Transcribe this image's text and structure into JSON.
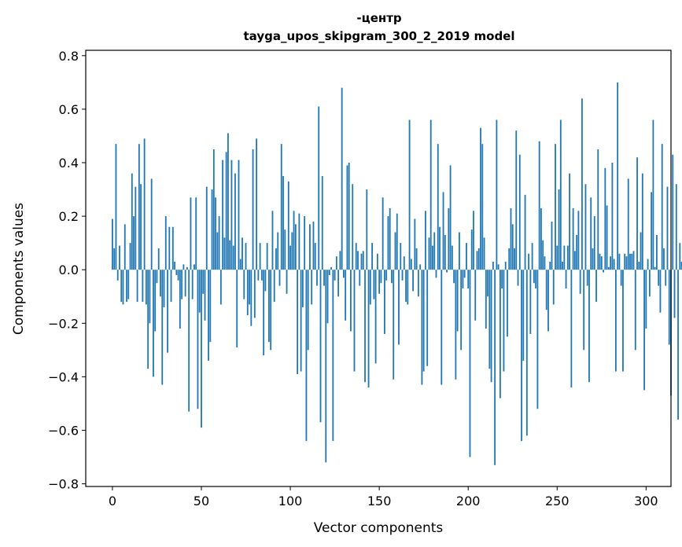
{
  "chart_data": {
    "type": "bar",
    "title_line1": "-центр",
    "title_line2": "tayga_upos_skipgram_300_2_2019 model",
    "xlabel": "Vector components",
    "ylabel": "Components values",
    "xlim": [
      -15,
      314
    ],
    "ylim": [
      -0.81,
      0.82
    ],
    "xticks": [
      0,
      50,
      100,
      150,
      200,
      250,
      300
    ],
    "xtick_labels": [
      "0",
      "50",
      "100",
      "150",
      "200",
      "250",
      "300"
    ],
    "yticks": [
      -0.8,
      -0.6,
      -0.4,
      -0.2,
      0.0,
      0.2,
      0.4,
      0.6,
      0.8
    ],
    "ytick_labels": [
      "−0.8",
      "−0.6",
      "−0.4",
      "−0.2",
      "0.0",
      "0.2",
      "0.4",
      "0.6",
      "0.8"
    ],
    "bar_color": "#1f77b4",
    "series": [
      {
        "name": "vector",
        "values": [
          0.19,
          0.08,
          0.47,
          -0.04,
          0.09,
          -0.12,
          -0.13,
          0.17,
          -0.12,
          -0.11,
          0.1,
          0.36,
          0.2,
          0.31,
          -0.12,
          0.47,
          0.32,
          -0.12,
          0.49,
          -0.13,
          -0.37,
          -0.2,
          0.34,
          -0.4,
          -0.23,
          -0.05,
          0.08,
          -0.1,
          -0.43,
          -0.14,
          0.2,
          -0.31,
          0.16,
          -0.12,
          0.16,
          0.03,
          -0.02,
          -0.04,
          -0.22,
          -0.11,
          0.02,
          -0.1,
          0.01,
          -0.53,
          0.27,
          -0.11,
          0.02,
          0.27,
          -0.52,
          -0.16,
          -0.59,
          -0.09,
          -0.19,
          0.31,
          -0.34,
          -0.27,
          0.3,
          0.45,
          0.27,
          0.14,
          0.2,
          -0.13,
          0.41,
          0.12,
          0.44,
          0.51,
          0.11,
          0.41,
          0.09,
          0.36,
          -0.29,
          0.41,
          0.04,
          0.12,
          -0.11,
          0.1,
          -0.17,
          -0.13,
          -0.21,
          0.45,
          -0.18,
          0.49,
          -0.04,
          0.1,
          -0.04,
          -0.32,
          -0.08,
          0.1,
          -0.27,
          -0.3,
          0.22,
          -0.12,
          0.08,
          0.14,
          -0.06,
          0.47,
          0.35,
          0.15,
          -0.09,
          0.33,
          0.09,
          0.14,
          0.22,
          0.17,
          -0.39,
          0.21,
          -0.38,
          -0.14,
          0.2,
          -0.64,
          -0.3,
          0.17,
          -0.13,
          0.18,
          0.1,
          -0.06,
          0.61,
          -0.57,
          0.35,
          -0.06,
          -0.72,
          -0.2,
          -0.02,
          0.01,
          -0.64,
          -0.04,
          0.05,
          -0.1,
          0.07,
          0.68,
          -0.03,
          -0.19,
          0.39,
          0.4,
          -0.23,
          0.32,
          -0.38,
          0.1,
          0.07,
          -0.06,
          0.06,
          0.07,
          -0.42,
          0.3,
          -0.44,
          -0.13,
          0.1,
          -0.11,
          -0.35,
          0.06,
          -0.09,
          -0.05,
          0.27,
          -0.24,
          -0.04,
          0.2,
          0.23,
          -0.05,
          -0.41,
          0.14,
          0.21,
          -0.28,
          0.1,
          -0.04,
          0.05,
          -0.12,
          -0.13,
          0.56,
          0.04,
          -0.08,
          0.19,
          0.08,
          -0.1,
          0.02,
          -0.43,
          -0.38,
          0.22,
          -0.36,
          0.12,
          0.56,
          0.09,
          0.14,
          -0.03,
          0.47,
          0.16,
          -0.43,
          0.29,
          0.13,
          -0.01,
          0.23,
          0.39,
          0.09,
          -0.05,
          -0.41,
          -0.23,
          0.14,
          -0.3,
          -0.07,
          -0.03,
          0.1,
          -0.07,
          -0.7,
          0.15,
          0.22,
          -0.19,
          0.07,
          0.08,
          0.53,
          0.47,
          0.12,
          -0.22,
          -0.1,
          -0.37,
          -0.42,
          0.03,
          -0.73,
          0.56,
          0.02,
          -0.48,
          -0.07,
          -0.38,
          0.03,
          -0.25,
          0.08,
          0.23,
          0.17,
          0.08,
          0.52,
          -0.06,
          0.43,
          -0.64,
          -0.34,
          0.28,
          -0.62,
          0.06,
          -0.24,
          0.1,
          -0.05,
          -0.07,
          -0.52,
          0.48,
          0.23,
          0.11,
          0.05,
          -0.15,
          -0.23,
          0.03,
          0.18,
          -0.13,
          0.47,
          0.09,
          0.3,
          0.56,
          0.03,
          0.09,
          -0.07,
          0.09,
          0.36,
          -0.44,
          0.23,
          0.07,
          0.13,
          0.22,
          -0.09,
          0.64,
          -0.3,
          0.32,
          -0.06,
          -0.42,
          0.27,
          0.08,
          0.2,
          -0.12,
          0.45,
          0.06,
          0.05,
          -0.01,
          0.38,
          0.24,
          0.01,
          0.05,
          0.4,
          0.04,
          -0.38,
          0.7,
          0.06,
          -0.06,
          -0.38,
          0.06,
          0.05,
          0.34,
          0.06,
          0.06,
          0.07,
          -0.3,
          0.42,
          0.03,
          0.14,
          0.36,
          -0.45,
          -0.22,
          0.04,
          -0.1,
          0.29,
          0.56,
          0.01,
          0.13,
          -0.06,
          -0.16,
          0.47,
          0.08,
          -0.06,
          0.31,
          -0.28,
          -0.47,
          0.43,
          -0.18,
          0.32,
          -0.56,
          0.1,
          0.03
        ]
      }
    ]
  }
}
